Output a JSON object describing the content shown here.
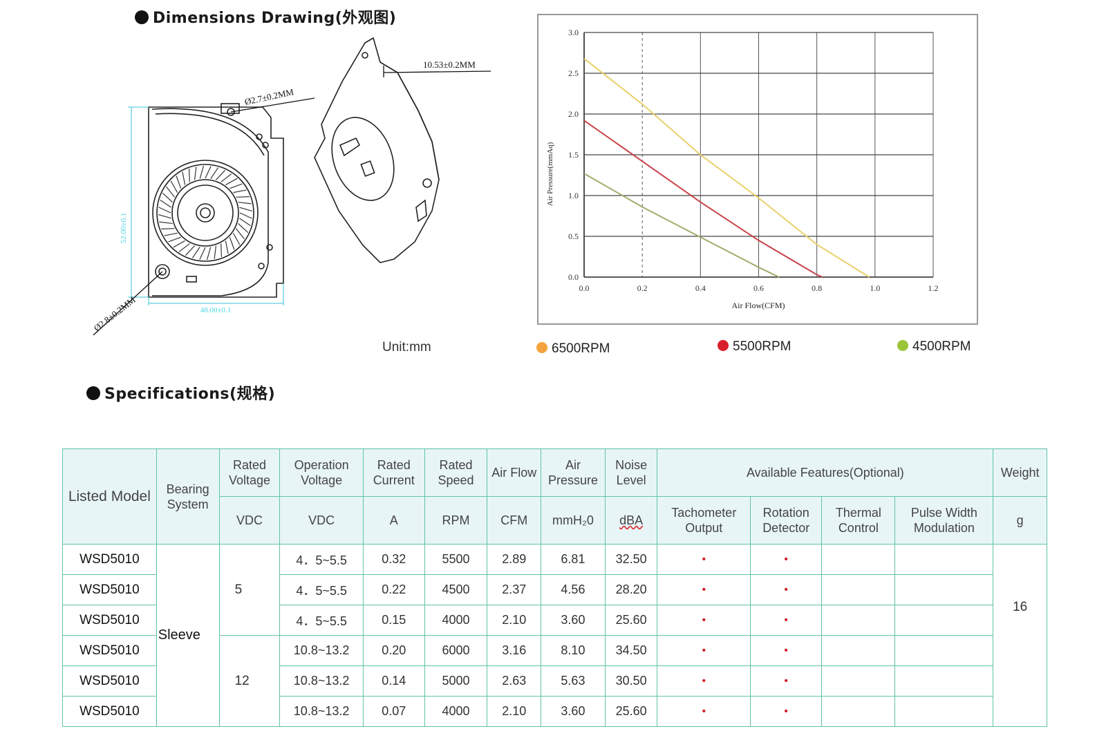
{
  "dimensions": {
    "heading": "Dimensions Drawing(外观图)",
    "labels": {
      "thickness": "10.53±0.2MM",
      "hole_top": "Ø2.7±0.2MM",
      "hole_bottom": "Ø2.8±0.2MM",
      "height": "52.00±0.1",
      "width": "48.00±0.1"
    },
    "unit": "Unit:mm"
  },
  "chart_data": {
    "type": "line",
    "title": "",
    "xlabel": "Air Flow(CFM)",
    "ylabel": "Air Pressure(mmAq)",
    "xlim": [
      0,
      1.2
    ],
    "ylim": [
      0,
      3.0
    ],
    "xticks": [
      "0.0",
      "0.2",
      "0.4",
      "0.6",
      "0.8",
      "1.0",
      "1.2"
    ],
    "yticks": [
      "0.0",
      "0.5",
      "1.0",
      "1.5",
      "2.0",
      "2.5",
      "3.0"
    ],
    "grid": true,
    "legend_position": "bottom",
    "series": [
      {
        "name": "6500RPM",
        "color": "#e9d06a",
        "dot_color": "#f5a33c",
        "x": [
          0.0,
          0.2,
          0.4,
          0.6,
          0.8,
          0.98
        ],
        "y": [
          2.68,
          2.12,
          1.5,
          0.97,
          0.4,
          0.0
        ]
      },
      {
        "name": "5500RPM",
        "color": "#c9424a",
        "dot_color": "#d81e2a",
        "x": [
          0.0,
          0.2,
          0.4,
          0.6,
          0.8,
          0.82
        ],
        "y": [
          1.92,
          1.42,
          0.92,
          0.45,
          0.03,
          0.0
        ]
      },
      {
        "name": "4500RPM",
        "color": "#a3ab6a",
        "dot_color": "#9bc63a",
        "x": [
          0.0,
          0.2,
          0.4,
          0.6,
          0.67
        ],
        "y": [
          1.27,
          0.86,
          0.49,
          0.12,
          0.0
        ]
      }
    ]
  },
  "specifications": {
    "heading": "Specifications(规格)",
    "headers": {
      "model": "Listed Model",
      "bearing": "Bearing System",
      "rated_voltage": "Rated Voltage",
      "operation_voltage": "Operation Voltage",
      "rated_current": "Rated Current",
      "rated_speed": "Rated Speed",
      "air_flow": "Air Flow",
      "air_pressure": "Air Pressure",
      "noise": "Noise Level",
      "features": "Available Features(Optional)",
      "weight": "Weight",
      "tachometer": "Tachometer Output",
      "rotation": "Rotation Detector",
      "thermal": "Thermal Control",
      "pwm": "Pulse Width Modulation"
    },
    "units": {
      "rated_voltage": "VDC",
      "operation_voltage": "VDC",
      "rated_current": "A",
      "rated_speed": "RPM",
      "air_flow": "CFM",
      "air_pressure": "mmH₂0",
      "noise": "dBA",
      "weight": "g"
    },
    "bearing": "Sleeve",
    "weight": "16",
    "voltage_groups": [
      "5",
      "12"
    ],
    "feature_mark": "•",
    "rows": [
      {
        "model": "WSD5010",
        "op_voltage": "4．5~5.5",
        "current": "0.32",
        "speed": "5500",
        "flow": "2.89",
        "pressure": "6.81",
        "noise": "32.50"
      },
      {
        "model": "WSD5010",
        "op_voltage": "4．5~5.5",
        "current": "0.22",
        "speed": "4500",
        "flow": "2.37",
        "pressure": "4.56",
        "noise": "28.20"
      },
      {
        "model": "WSD5010",
        "op_voltage": "4．5~5.5",
        "current": "0.15",
        "speed": "4000",
        "flow": "2.10",
        "pressure": "3.60",
        "noise": "25.60"
      },
      {
        "model": "WSD5010",
        "op_voltage": "10.8~13.2",
        "current": "0.20",
        "speed": "6000",
        "flow": "3.16",
        "pressure": "8.10",
        "noise": "34.50"
      },
      {
        "model": "WSD5010",
        "op_voltage": "10.8~13.2",
        "current": "0.14",
        "speed": "5000",
        "flow": "2.63",
        "pressure": "5.63",
        "noise": "30.50"
      },
      {
        "model": "WSD5010",
        "op_voltage": "10.8~13.2",
        "current": "0.07",
        "speed": "4000",
        "flow": "2.10",
        "pressure": "3.60",
        "noise": "25.60"
      }
    ]
  }
}
